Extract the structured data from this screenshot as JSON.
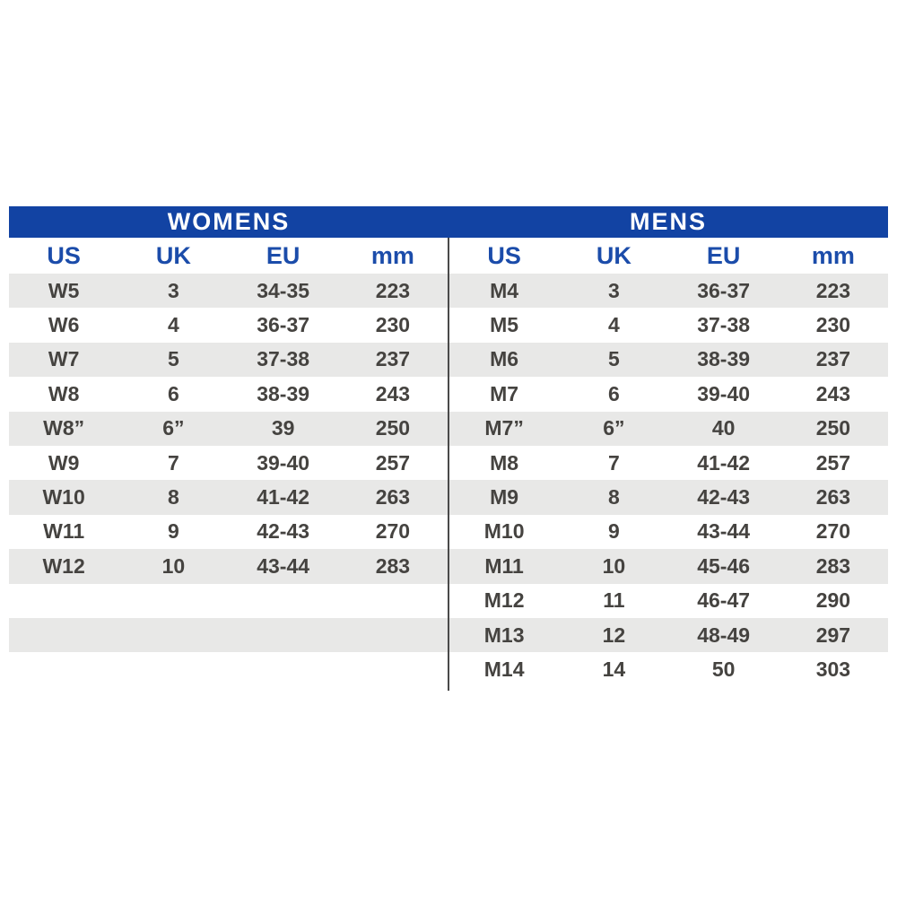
{
  "colors": {
    "page_bg": "#ffffff",
    "bar_blue": "#1243A3",
    "bar_text": "#ffffff",
    "head_blue": "#1B4CAA",
    "stripe": "#E8E8E7",
    "data_text": "#454340",
    "divider": "#4a4a4a"
  },
  "chart_data": [
    {
      "type": "table",
      "title": "WOMENS",
      "columns": [
        "US",
        "UK",
        "EU",
        "mm"
      ],
      "rows": [
        [
          "W5",
          "3",
          "34-35",
          "223"
        ],
        [
          "W6",
          "4",
          "36-37",
          "230"
        ],
        [
          "W7",
          "5",
          "37-38",
          "237"
        ],
        [
          "W8",
          "6",
          "38-39",
          "243"
        ],
        [
          "W8”",
          "6”",
          "39",
          "250"
        ],
        [
          "W9",
          "7",
          "39-40",
          "257"
        ],
        [
          "W10",
          "8",
          "41-42",
          "263"
        ],
        [
          "W11",
          "9",
          "42-43",
          "270"
        ],
        [
          "W12",
          "10",
          "43-44",
          "283"
        ]
      ],
      "trailing_empty_rows": 3
    },
    {
      "type": "table",
      "title": "MENS",
      "columns": [
        "US",
        "UK",
        "EU",
        "mm"
      ],
      "rows": [
        [
          "M4",
          "3",
          "36-37",
          "223"
        ],
        [
          "M5",
          "4",
          "37-38",
          "230"
        ],
        [
          "M6",
          "5",
          "38-39",
          "237"
        ],
        [
          "M7",
          "6",
          "39-40",
          "243"
        ],
        [
          "M7”",
          "6”",
          "40",
          "250"
        ],
        [
          "M8",
          "7",
          "41-42",
          "257"
        ],
        [
          "M9",
          "8",
          "42-43",
          "263"
        ],
        [
          "M10",
          "9",
          "43-44",
          "270"
        ],
        [
          "M11",
          "10",
          "45-46",
          "283"
        ],
        [
          "M12",
          "11",
          "46-47",
          "290"
        ],
        [
          "M13",
          "12",
          "48-49",
          "297"
        ],
        [
          "M14",
          "14",
          "50",
          "303"
        ]
      ],
      "trailing_empty_rows": 0
    }
  ]
}
